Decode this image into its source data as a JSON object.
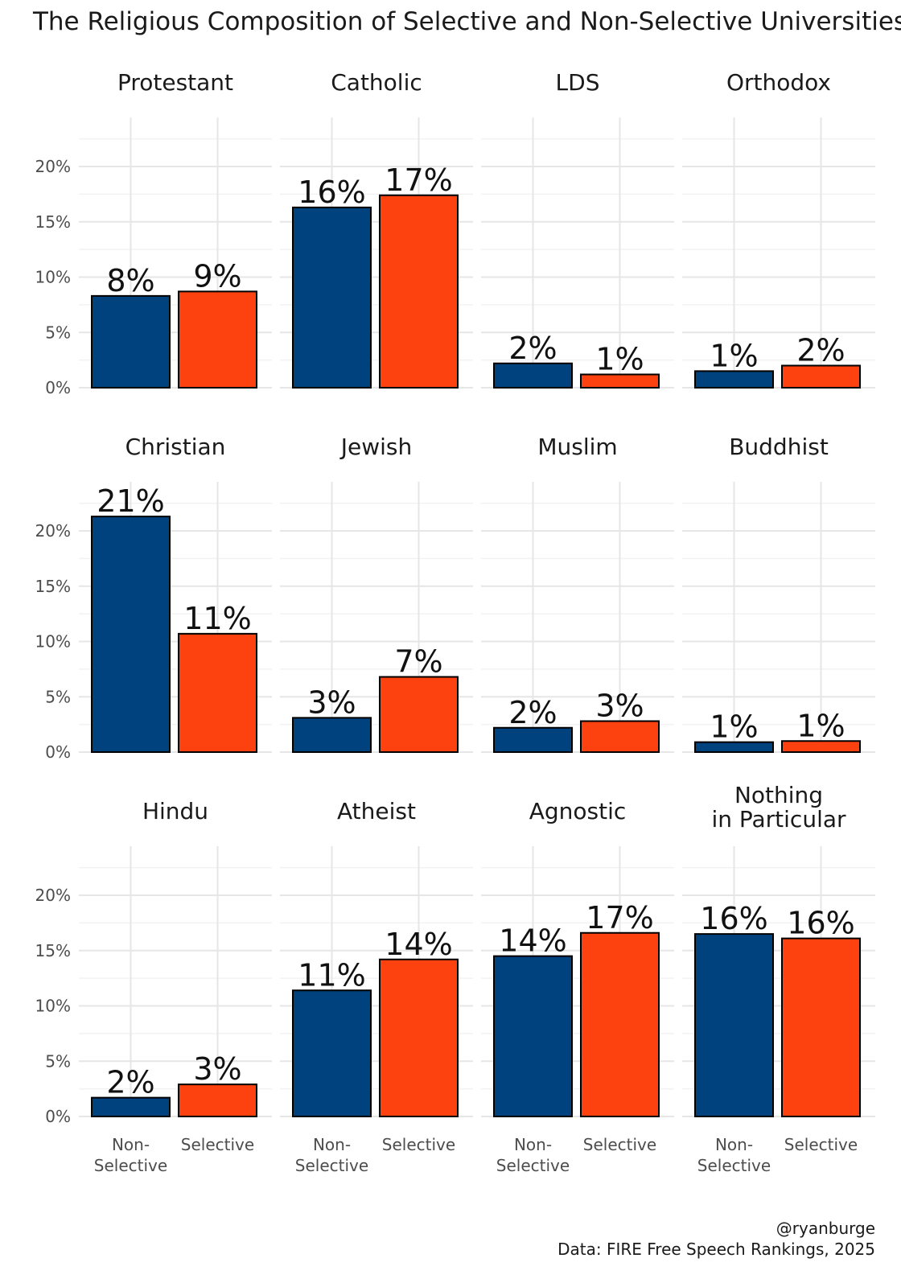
{
  "chart_data": {
    "type": "bar",
    "title": "The Religious Composition of Selective and Non-Selective Universities",
    "categories": [
      "Non-\nSelective",
      "Selective"
    ],
    "y_ticks": [
      "0%",
      "5%",
      "10%",
      "15%",
      "20%"
    ],
    "ylim": [
      0,
      0.236
    ],
    "grid": true,
    "bar_colors": [
      "#00427e",
      "#fd410f"
    ],
    "panels": [
      {
        "name": "Protestant",
        "values": [
          0.083,
          0.087
        ],
        "labels": [
          "8%",
          "9%"
        ]
      },
      {
        "name": "Catholic",
        "values": [
          0.163,
          0.174
        ],
        "labels": [
          "16%",
          "17%"
        ]
      },
      {
        "name": "LDS",
        "values": [
          0.022,
          0.012
        ],
        "labels": [
          "2%",
          "1%"
        ]
      },
      {
        "name": "Orthodox",
        "values": [
          0.015,
          0.02
        ],
        "labels": [
          "1%",
          "2%"
        ]
      },
      {
        "name": "Christian",
        "values": [
          0.213,
          0.107
        ],
        "labels": [
          "21%",
          "11%"
        ]
      },
      {
        "name": "Jewish",
        "values": [
          0.031,
          0.068
        ],
        "labels": [
          "3%",
          "7%"
        ]
      },
      {
        "name": "Muslim",
        "values": [
          0.022,
          0.028
        ],
        "labels": [
          "2%",
          "3%"
        ]
      },
      {
        "name": "Buddhist",
        "values": [
          0.009,
          0.01
        ],
        "labels": [
          "1%",
          "1%"
        ]
      },
      {
        "name": "Hindu",
        "values": [
          0.017,
          0.029
        ],
        "labels": [
          "2%",
          "3%"
        ]
      },
      {
        "name": "Atheist",
        "values": [
          0.114,
          0.142
        ],
        "labels": [
          "11%",
          "14%"
        ]
      },
      {
        "name": "Agnostic",
        "values": [
          0.145,
          0.166
        ],
        "labels": [
          "14%",
          "17%"
        ]
      },
      {
        "name": "Nothing\nin Particular",
        "values": [
          0.165,
          0.161
        ],
        "labels": [
          "16%",
          "16%"
        ]
      }
    ],
    "credit": "@ryanburge",
    "source": "Data: FIRE Free Speech Rankings, 2025"
  }
}
